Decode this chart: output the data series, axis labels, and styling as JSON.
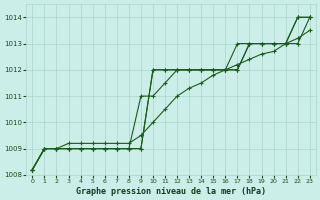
{
  "title": "Graphe pression niveau de la mer (hPa)",
  "background_color": "#cceee8",
  "grid_color": "#aad4cc",
  "line_color": "#1a5c1a",
  "xlim": [
    -0.5,
    23.5
  ],
  "ylim": [
    1008.0,
    1014.5
  ],
  "yticks": [
    1008,
    1009,
    1010,
    1011,
    1012,
    1013,
    1014
  ],
  "xticks": [
    0,
    1,
    2,
    3,
    4,
    5,
    6,
    7,
    8,
    9,
    10,
    11,
    12,
    13,
    14,
    15,
    16,
    17,
    18,
    19,
    20,
    21,
    22,
    23
  ],
  "series": [
    [
      1008.2,
      1009.0,
      1009.0,
      1009.0,
      1009.0,
      1009.0,
      1009.0,
      1009.0,
      1009.0,
      1009.0,
      1012.0,
      1012.0,
      1012.0,
      1012.0,
      1012.0,
      1012.0,
      1012.0,
      1013.0,
      1013.0,
      1013.0,
      1013.0,
      1013.0,
      1014.0,
      1014.0
    ],
    [
      1008.2,
      1009.0,
      1009.0,
      1009.0,
      1009.0,
      1009.0,
      1009.0,
      1009.0,
      1009.0,
      1009.0,
      1012.0,
      1012.0,
      1012.0,
      1012.0,
      1012.0,
      1012.0,
      1012.0,
      1012.0,
      1013.0,
      1013.0,
      1013.0,
      1013.0,
      1014.0,
      1014.0
    ],
    [
      1008.2,
      1009.0,
      1009.0,
      1009.0,
      1009.0,
      1009.0,
      1009.0,
      1009.0,
      1009.0,
      1011.0,
      1011.0,
      1011.5,
      1012.0,
      1012.0,
      1012.0,
      1012.0,
      1012.0,
      1012.0,
      1013.0,
      1013.0,
      1013.0,
      1013.0,
      1013.0,
      1014.0
    ],
    [
      1008.2,
      1009.0,
      1009.0,
      1009.2,
      1009.2,
      1009.2,
      1009.2,
      1009.2,
      1009.2,
      1009.5,
      1010.0,
      1010.5,
      1011.0,
      1011.3,
      1011.5,
      1011.8,
      1012.0,
      1012.2,
      1012.4,
      1012.6,
      1012.7,
      1013.0,
      1013.2,
      1013.5
    ]
  ]
}
